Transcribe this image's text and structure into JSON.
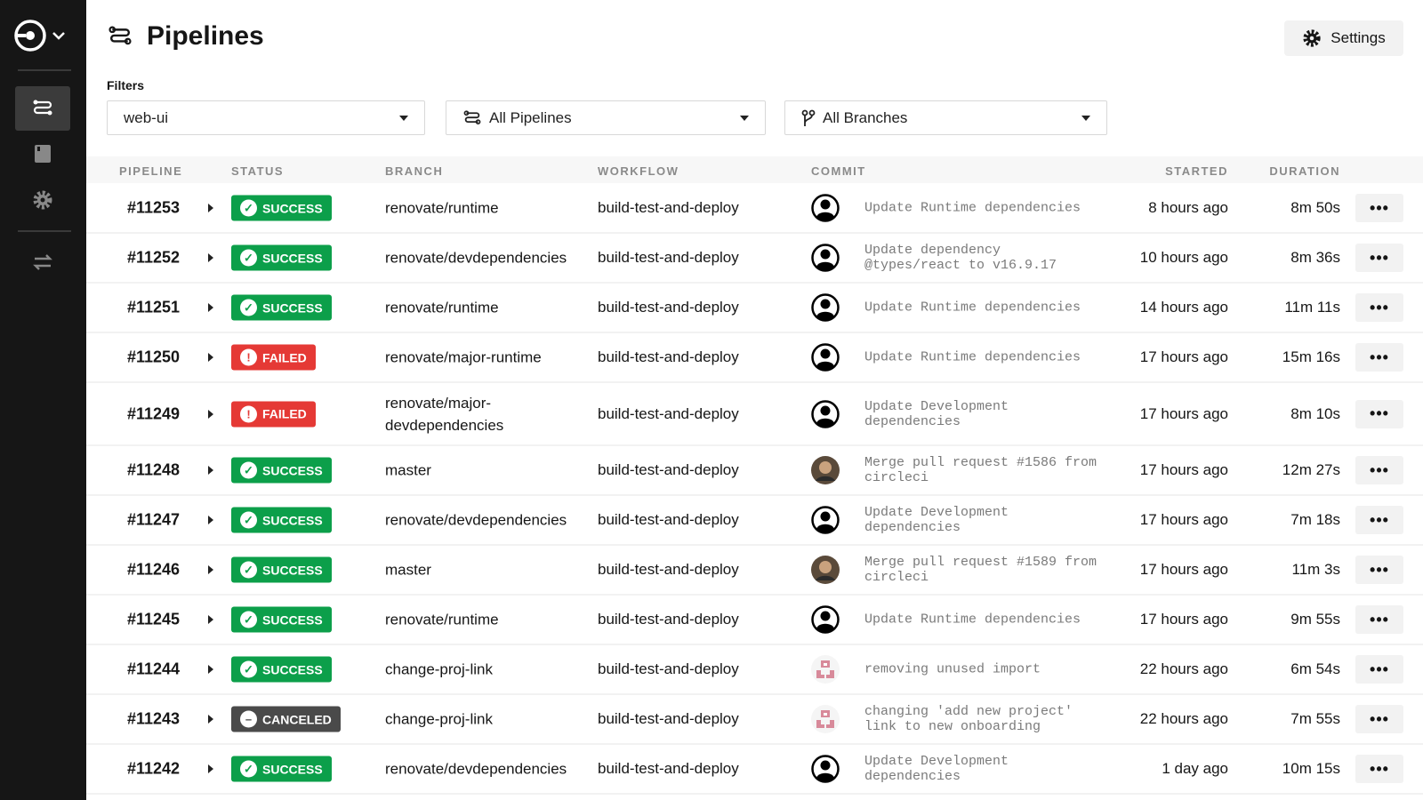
{
  "header": {
    "title": "Pipelines",
    "settings_label": "Settings"
  },
  "filters": {
    "label": "Filters",
    "project": "web-ui",
    "pipelines": "All Pipelines",
    "branches": "All Branches"
  },
  "columns": {
    "pipeline": "PIPELINE",
    "status": "STATUS",
    "branch": "BRANCH",
    "workflow": "WORKFLOW",
    "commit": "COMMIT",
    "started": "STARTED",
    "duration": "DURATION"
  },
  "colors": {
    "success": "#0c9f4a",
    "failed": "#e53935",
    "canceled": "#4a4a4a",
    "sidebar": "#161616"
  },
  "rows": [
    {
      "id": "#11253",
      "status": "SUCCESS",
      "branch": "renovate/runtime",
      "workflow": "build-test-and-deploy",
      "avatar": "default",
      "commit": "Update Runtime dependencies",
      "started": "8 hours ago",
      "duration": "8m 50s"
    },
    {
      "id": "#11252",
      "status": "SUCCESS",
      "branch": "renovate/devdependencies",
      "workflow": "build-test-and-deploy",
      "avatar": "default",
      "commit": "Update dependency @types/react to v16.9.17",
      "started": "10 hours ago",
      "duration": "8m 36s"
    },
    {
      "id": "#11251",
      "status": "SUCCESS",
      "branch": "renovate/runtime",
      "workflow": "build-test-and-deploy",
      "avatar": "default",
      "commit": "Update Runtime dependencies",
      "started": "14 hours ago",
      "duration": "11m 11s"
    },
    {
      "id": "#11250",
      "status": "FAILED",
      "branch": "renovate/major-runtime",
      "workflow": "build-test-and-deploy",
      "avatar": "default",
      "commit": "Update Runtime dependencies",
      "started": "17 hours ago",
      "duration": "15m 16s"
    },
    {
      "id": "#11249",
      "status": "FAILED",
      "branch": "renovate/major-devdependencies",
      "workflow": "build-test-and-deploy",
      "avatar": "default",
      "commit": "Update Development dependencies",
      "started": "17 hours ago",
      "duration": "8m 10s"
    },
    {
      "id": "#11248",
      "status": "SUCCESS",
      "branch": "master",
      "workflow": "build-test-and-deploy",
      "avatar": "photo",
      "commit": "Merge pull request #1586 from circleci",
      "started": "17 hours ago",
      "duration": "12m 27s"
    },
    {
      "id": "#11247",
      "status": "SUCCESS",
      "branch": "renovate/devdependencies",
      "workflow": "build-test-and-deploy",
      "avatar": "default",
      "commit": "Update Development dependencies",
      "started": "17 hours ago",
      "duration": "7m 18s"
    },
    {
      "id": "#11246",
      "status": "SUCCESS",
      "branch": "master",
      "workflow": "build-test-and-deploy",
      "avatar": "photo",
      "commit": "Merge pull request #1589 from circleci",
      "started": "17 hours ago",
      "duration": "11m 3s"
    },
    {
      "id": "#11245",
      "status": "SUCCESS",
      "branch": "renovate/runtime",
      "workflow": "build-test-and-deploy",
      "avatar": "default",
      "commit": "Update Runtime dependencies",
      "started": "17 hours ago",
      "duration": "9m 55s"
    },
    {
      "id": "#11244",
      "status": "SUCCESS",
      "branch": "change-proj-link",
      "workflow": "build-test-and-deploy",
      "avatar": "identicon",
      "commit": "removing unused import",
      "started": "22 hours ago",
      "duration": "6m 54s"
    },
    {
      "id": "#11243",
      "status": "CANCELED",
      "branch": "change-proj-link",
      "workflow": "build-test-and-deploy",
      "avatar": "identicon",
      "commit": "changing 'add new project' link to new onboarding",
      "started": "22 hours ago",
      "duration": "7m 55s"
    },
    {
      "id": "#11242",
      "status": "SUCCESS",
      "branch": "renovate/devdependencies",
      "workflow": "build-test-and-deploy",
      "avatar": "default",
      "commit": "Update Development dependencies",
      "started": "1 day ago",
      "duration": "10m 15s"
    }
  ]
}
